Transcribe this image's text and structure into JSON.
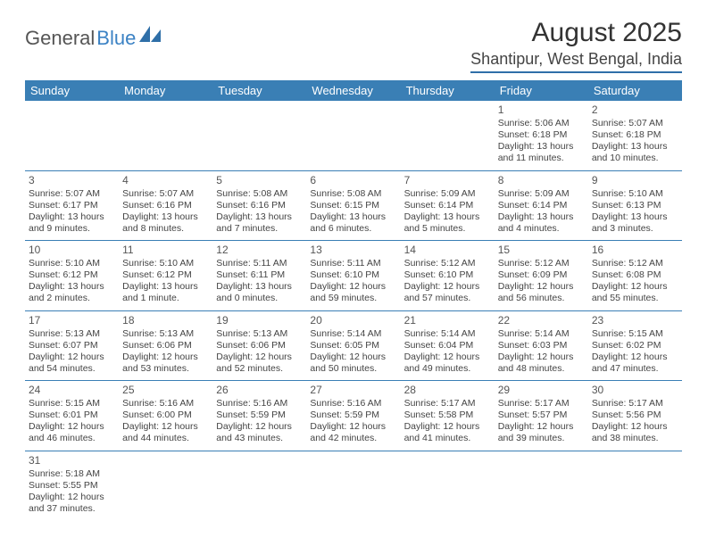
{
  "logo": {
    "part1": "General",
    "part2": "Blue"
  },
  "title": "August 2025",
  "location": "Shantipur, West Bengal, India",
  "colors": {
    "header_bg": "#3a7fb5",
    "header_text": "#ffffff",
    "border": "#3a7fb5",
    "logo_blue": "#3b82c4",
    "logo_gray": "#555555"
  },
  "dayHeaders": [
    "Sunday",
    "Monday",
    "Tuesday",
    "Wednesday",
    "Thursday",
    "Friday",
    "Saturday"
  ],
  "weeks": [
    [
      null,
      null,
      null,
      null,
      null,
      {
        "n": "1",
        "sr": "Sunrise: 5:06 AM",
        "ss": "Sunset: 6:18 PM",
        "dl": "Daylight: 13 hours and 11 minutes."
      },
      {
        "n": "2",
        "sr": "Sunrise: 5:07 AM",
        "ss": "Sunset: 6:18 PM",
        "dl": "Daylight: 13 hours and 10 minutes."
      }
    ],
    [
      {
        "n": "3",
        "sr": "Sunrise: 5:07 AM",
        "ss": "Sunset: 6:17 PM",
        "dl": "Daylight: 13 hours and 9 minutes."
      },
      {
        "n": "4",
        "sr": "Sunrise: 5:07 AM",
        "ss": "Sunset: 6:16 PM",
        "dl": "Daylight: 13 hours and 8 minutes."
      },
      {
        "n": "5",
        "sr": "Sunrise: 5:08 AM",
        "ss": "Sunset: 6:16 PM",
        "dl": "Daylight: 13 hours and 7 minutes."
      },
      {
        "n": "6",
        "sr": "Sunrise: 5:08 AM",
        "ss": "Sunset: 6:15 PM",
        "dl": "Daylight: 13 hours and 6 minutes."
      },
      {
        "n": "7",
        "sr": "Sunrise: 5:09 AM",
        "ss": "Sunset: 6:14 PM",
        "dl": "Daylight: 13 hours and 5 minutes."
      },
      {
        "n": "8",
        "sr": "Sunrise: 5:09 AM",
        "ss": "Sunset: 6:14 PM",
        "dl": "Daylight: 13 hours and 4 minutes."
      },
      {
        "n": "9",
        "sr": "Sunrise: 5:10 AM",
        "ss": "Sunset: 6:13 PM",
        "dl": "Daylight: 13 hours and 3 minutes."
      }
    ],
    [
      {
        "n": "10",
        "sr": "Sunrise: 5:10 AM",
        "ss": "Sunset: 6:12 PM",
        "dl": "Daylight: 13 hours and 2 minutes."
      },
      {
        "n": "11",
        "sr": "Sunrise: 5:10 AM",
        "ss": "Sunset: 6:12 PM",
        "dl": "Daylight: 13 hours and 1 minute."
      },
      {
        "n": "12",
        "sr": "Sunrise: 5:11 AM",
        "ss": "Sunset: 6:11 PM",
        "dl": "Daylight: 13 hours and 0 minutes."
      },
      {
        "n": "13",
        "sr": "Sunrise: 5:11 AM",
        "ss": "Sunset: 6:10 PM",
        "dl": "Daylight: 12 hours and 59 minutes."
      },
      {
        "n": "14",
        "sr": "Sunrise: 5:12 AM",
        "ss": "Sunset: 6:10 PM",
        "dl": "Daylight: 12 hours and 57 minutes."
      },
      {
        "n": "15",
        "sr": "Sunrise: 5:12 AM",
        "ss": "Sunset: 6:09 PM",
        "dl": "Daylight: 12 hours and 56 minutes."
      },
      {
        "n": "16",
        "sr": "Sunrise: 5:12 AM",
        "ss": "Sunset: 6:08 PM",
        "dl": "Daylight: 12 hours and 55 minutes."
      }
    ],
    [
      {
        "n": "17",
        "sr": "Sunrise: 5:13 AM",
        "ss": "Sunset: 6:07 PM",
        "dl": "Daylight: 12 hours and 54 minutes."
      },
      {
        "n": "18",
        "sr": "Sunrise: 5:13 AM",
        "ss": "Sunset: 6:06 PM",
        "dl": "Daylight: 12 hours and 53 minutes."
      },
      {
        "n": "19",
        "sr": "Sunrise: 5:13 AM",
        "ss": "Sunset: 6:06 PM",
        "dl": "Daylight: 12 hours and 52 minutes."
      },
      {
        "n": "20",
        "sr": "Sunrise: 5:14 AM",
        "ss": "Sunset: 6:05 PM",
        "dl": "Daylight: 12 hours and 50 minutes."
      },
      {
        "n": "21",
        "sr": "Sunrise: 5:14 AM",
        "ss": "Sunset: 6:04 PM",
        "dl": "Daylight: 12 hours and 49 minutes."
      },
      {
        "n": "22",
        "sr": "Sunrise: 5:14 AM",
        "ss": "Sunset: 6:03 PM",
        "dl": "Daylight: 12 hours and 48 minutes."
      },
      {
        "n": "23",
        "sr": "Sunrise: 5:15 AM",
        "ss": "Sunset: 6:02 PM",
        "dl": "Daylight: 12 hours and 47 minutes."
      }
    ],
    [
      {
        "n": "24",
        "sr": "Sunrise: 5:15 AM",
        "ss": "Sunset: 6:01 PM",
        "dl": "Daylight: 12 hours and 46 minutes."
      },
      {
        "n": "25",
        "sr": "Sunrise: 5:16 AM",
        "ss": "Sunset: 6:00 PM",
        "dl": "Daylight: 12 hours and 44 minutes."
      },
      {
        "n": "26",
        "sr": "Sunrise: 5:16 AM",
        "ss": "Sunset: 5:59 PM",
        "dl": "Daylight: 12 hours and 43 minutes."
      },
      {
        "n": "27",
        "sr": "Sunrise: 5:16 AM",
        "ss": "Sunset: 5:59 PM",
        "dl": "Daylight: 12 hours and 42 minutes."
      },
      {
        "n": "28",
        "sr": "Sunrise: 5:17 AM",
        "ss": "Sunset: 5:58 PM",
        "dl": "Daylight: 12 hours and 41 minutes."
      },
      {
        "n": "29",
        "sr": "Sunrise: 5:17 AM",
        "ss": "Sunset: 5:57 PM",
        "dl": "Daylight: 12 hours and 39 minutes."
      },
      {
        "n": "30",
        "sr": "Sunrise: 5:17 AM",
        "ss": "Sunset: 5:56 PM",
        "dl": "Daylight: 12 hours and 38 minutes."
      }
    ],
    [
      {
        "n": "31",
        "sr": "Sunrise: 5:18 AM",
        "ss": "Sunset: 5:55 PM",
        "dl": "Daylight: 12 hours and 37 minutes."
      },
      null,
      null,
      null,
      null,
      null,
      null
    ]
  ]
}
